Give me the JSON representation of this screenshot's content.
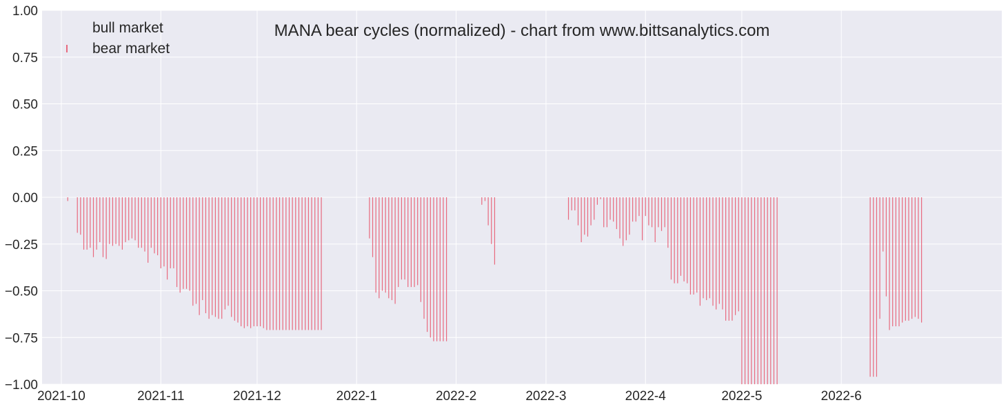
{
  "chart_data": {
    "type": "bar",
    "title": "MANA bear cycles (normalized)  - chart from www.bittsanalytics.com",
    "xlabel": "",
    "ylabel": "",
    "ylim": [
      -1.0,
      1.0
    ],
    "yticks": [
      "1.00",
      "0.75",
      "0.50",
      "0.25",
      "0.00",
      "−0.25",
      "−0.50",
      "−0.75",
      "−1.00"
    ],
    "ytick_values": [
      1.0,
      0.75,
      0.5,
      0.25,
      0.0,
      -0.25,
      -0.5,
      -0.75,
      -1.0
    ],
    "xlim": [
      "2021-09-25",
      "2022-07-21"
    ],
    "xticks": [
      "2021-10",
      "2021-11",
      "2021-12",
      "2022-1",
      "2022-2",
      "2022-3",
      "2022-4",
      "2022-5",
      "2022-6"
    ],
    "xtick_dates": [
      "2021-10-01",
      "2021-11-01",
      "2021-12-01",
      "2022-01-01",
      "2022-02-01",
      "2022-03-01",
      "2022-04-01",
      "2022-05-01",
      "2022-06-01"
    ],
    "grid": true,
    "legend_position": "top-left",
    "colors": {
      "background": "#eaeaf2",
      "grid": "#ffffff",
      "bear": "#e8697e"
    },
    "series": [
      {
        "name": "bull market",
        "dates": [],
        "values": []
      },
      {
        "name": "bear market",
        "dates": [
          "2021-10-03",
          "2021-10-04",
          "2021-10-05",
          "2021-10-06",
          "2021-10-07",
          "2021-10-08",
          "2021-10-09",
          "2021-10-10",
          "2021-10-11",
          "2021-10-12",
          "2021-10-13",
          "2021-10-14",
          "2021-10-15",
          "2021-10-16",
          "2021-10-17",
          "2021-10-18",
          "2021-10-19",
          "2021-10-20",
          "2021-10-21",
          "2021-10-22",
          "2021-10-23",
          "2021-10-24",
          "2021-10-25",
          "2021-10-26",
          "2021-10-27",
          "2021-10-28",
          "2021-10-29",
          "2021-10-30",
          "2021-10-31",
          "2021-11-01",
          "2021-11-02",
          "2021-11-03",
          "2021-11-04",
          "2021-11-05",
          "2021-11-06",
          "2021-11-07",
          "2021-11-08",
          "2021-11-09",
          "2021-11-10",
          "2021-11-11",
          "2021-11-12",
          "2021-11-13",
          "2021-11-14",
          "2021-11-15",
          "2021-11-16",
          "2021-11-17",
          "2021-11-18",
          "2021-11-19",
          "2021-11-20",
          "2021-11-21",
          "2021-11-22",
          "2021-11-23",
          "2021-11-24",
          "2021-11-25",
          "2021-11-26",
          "2021-11-27",
          "2021-11-28",
          "2021-11-29",
          "2021-11-30",
          "2021-12-01",
          "2021-12-02",
          "2021-12-03",
          "2021-12-04",
          "2021-12-05",
          "2021-12-06",
          "2021-12-07",
          "2021-12-08",
          "2021-12-09",
          "2021-12-10",
          "2021-12-11",
          "2021-12-12",
          "2021-12-13",
          "2021-12-14",
          "2021-12-15",
          "2021-12-16",
          "2021-12-17",
          "2021-12-18",
          "2021-12-19",
          "2021-12-20",
          "2021-12-21",
          "2022-01-05",
          "2022-01-06",
          "2022-01-07",
          "2022-01-08",
          "2022-01-09",
          "2022-01-10",
          "2022-01-11",
          "2022-01-12",
          "2022-01-13",
          "2022-01-14",
          "2022-01-15",
          "2022-01-16",
          "2022-01-17",
          "2022-01-18",
          "2022-01-19",
          "2022-01-20",
          "2022-01-21",
          "2022-01-22",
          "2022-01-23",
          "2022-01-24",
          "2022-01-25",
          "2022-01-26",
          "2022-01-27",
          "2022-01-28",
          "2022-01-29",
          "2022-02-09",
          "2022-02-10",
          "2022-02-11",
          "2022-02-12",
          "2022-02-13",
          "2022-03-08",
          "2022-03-09",
          "2022-03-10",
          "2022-03-11",
          "2022-03-12",
          "2022-03-13",
          "2022-03-14",
          "2022-03-15",
          "2022-03-16",
          "2022-03-17",
          "2022-03-18",
          "2022-03-19",
          "2022-03-20",
          "2022-03-21",
          "2022-03-22",
          "2022-03-23",
          "2022-03-24",
          "2022-03-25",
          "2022-03-26",
          "2022-03-27",
          "2022-03-28",
          "2022-03-29",
          "2022-03-30",
          "2022-03-31",
          "2022-04-01",
          "2022-04-02",
          "2022-04-03",
          "2022-04-04",
          "2022-04-05",
          "2022-04-06",
          "2022-04-07",
          "2022-04-08",
          "2022-04-09",
          "2022-04-10",
          "2022-04-11",
          "2022-04-12",
          "2022-04-13",
          "2022-04-14",
          "2022-04-15",
          "2022-04-16",
          "2022-04-17",
          "2022-04-18",
          "2022-04-19",
          "2022-04-20",
          "2022-04-21",
          "2022-04-22",
          "2022-04-23",
          "2022-04-24",
          "2022-04-25",
          "2022-04-26",
          "2022-04-27",
          "2022-04-28",
          "2022-04-29",
          "2022-04-30",
          "2022-05-01",
          "2022-05-02",
          "2022-05-03",
          "2022-05-04",
          "2022-05-05",
          "2022-05-06",
          "2022-05-07",
          "2022-05-08",
          "2022-05-09",
          "2022-05-10",
          "2022-05-11",
          "2022-05-12",
          "2022-06-10",
          "2022-06-11",
          "2022-06-12",
          "2022-06-13",
          "2022-06-14",
          "2022-06-15",
          "2022-06-16",
          "2022-06-17",
          "2022-06-18",
          "2022-06-19",
          "2022-06-20",
          "2022-06-21",
          "2022-06-22",
          "2022-06-23",
          "2022-06-24",
          "2022-06-25",
          "2022-06-26"
        ],
        "values": [
          -0.02,
          0.0,
          0.0,
          -0.19,
          -0.2,
          -0.28,
          -0.28,
          -0.27,
          -0.32,
          -0.28,
          -0.24,
          -0.32,
          -0.33,
          -0.25,
          -0.26,
          -0.25,
          -0.26,
          -0.28,
          -0.24,
          -0.23,
          -0.22,
          -0.23,
          -0.27,
          -0.27,
          -0.29,
          -0.35,
          -0.27,
          -0.3,
          -0.31,
          -0.38,
          -0.37,
          -0.44,
          -0.38,
          -0.38,
          -0.48,
          -0.51,
          -0.49,
          -0.49,
          -0.5,
          -0.58,
          -0.57,
          -0.63,
          -0.55,
          -0.62,
          -0.65,
          -0.63,
          -0.64,
          -0.65,
          -0.65,
          -0.6,
          -0.58,
          -0.64,
          -0.66,
          -0.67,
          -0.69,
          -0.7,
          -0.69,
          -0.7,
          -0.69,
          -0.69,
          -0.69,
          -0.7,
          -0.71,
          -0.71,
          -0.71,
          -0.71,
          -0.71,
          -0.71,
          -0.71,
          -0.71,
          -0.71,
          -0.71,
          -0.71,
          -0.71,
          -0.71,
          -0.71,
          -0.71,
          -0.71,
          -0.71,
          -0.71,
          -0.22,
          -0.32,
          -0.51,
          -0.54,
          -0.5,
          -0.51,
          -0.54,
          -0.55,
          -0.57,
          -0.48,
          -0.44,
          -0.44,
          -0.48,
          -0.48,
          -0.48,
          -0.47,
          -0.56,
          -0.65,
          -0.72,
          -0.75,
          -0.77,
          -0.77,
          -0.77,
          -0.77,
          -0.77,
          -0.04,
          -0.02,
          -0.15,
          -0.25,
          -0.36,
          -0.12,
          -0.07,
          -0.07,
          -0.15,
          -0.24,
          -0.2,
          -0.21,
          -0.15,
          -0.12,
          -0.04,
          -0.01,
          -0.16,
          -0.16,
          -0.12,
          -0.13,
          -0.17,
          -0.22,
          -0.26,
          -0.23,
          -0.2,
          -0.13,
          -0.13,
          -0.1,
          -0.23,
          -0.1,
          -0.15,
          -0.16,
          -0.24,
          -0.16,
          -0.18,
          -0.16,
          -0.27,
          -0.44,
          -0.46,
          -0.46,
          -0.42,
          -0.45,
          -0.46,
          -0.52,
          -0.52,
          -0.51,
          -0.58,
          -0.54,
          -0.55,
          -0.54,
          -0.58,
          -0.6,
          -0.57,
          -0.6,
          -0.66,
          -0.66,
          -0.66,
          -0.63,
          -0.61,
          -1.0,
          -1.0,
          -1.0,
          -1.0,
          -1.0,
          -1.0,
          -1.0,
          -1.0,
          -1.0,
          -1.0,
          -1.0,
          -1.0,
          -0.96,
          -0.96,
          -0.96,
          -0.65,
          -0.29,
          -0.53,
          -0.71,
          -0.69,
          -0.69,
          -0.69,
          -0.67,
          -0.66,
          -0.66,
          -0.65,
          -0.64,
          -0.65,
          -0.67
        ]
      }
    ]
  }
}
